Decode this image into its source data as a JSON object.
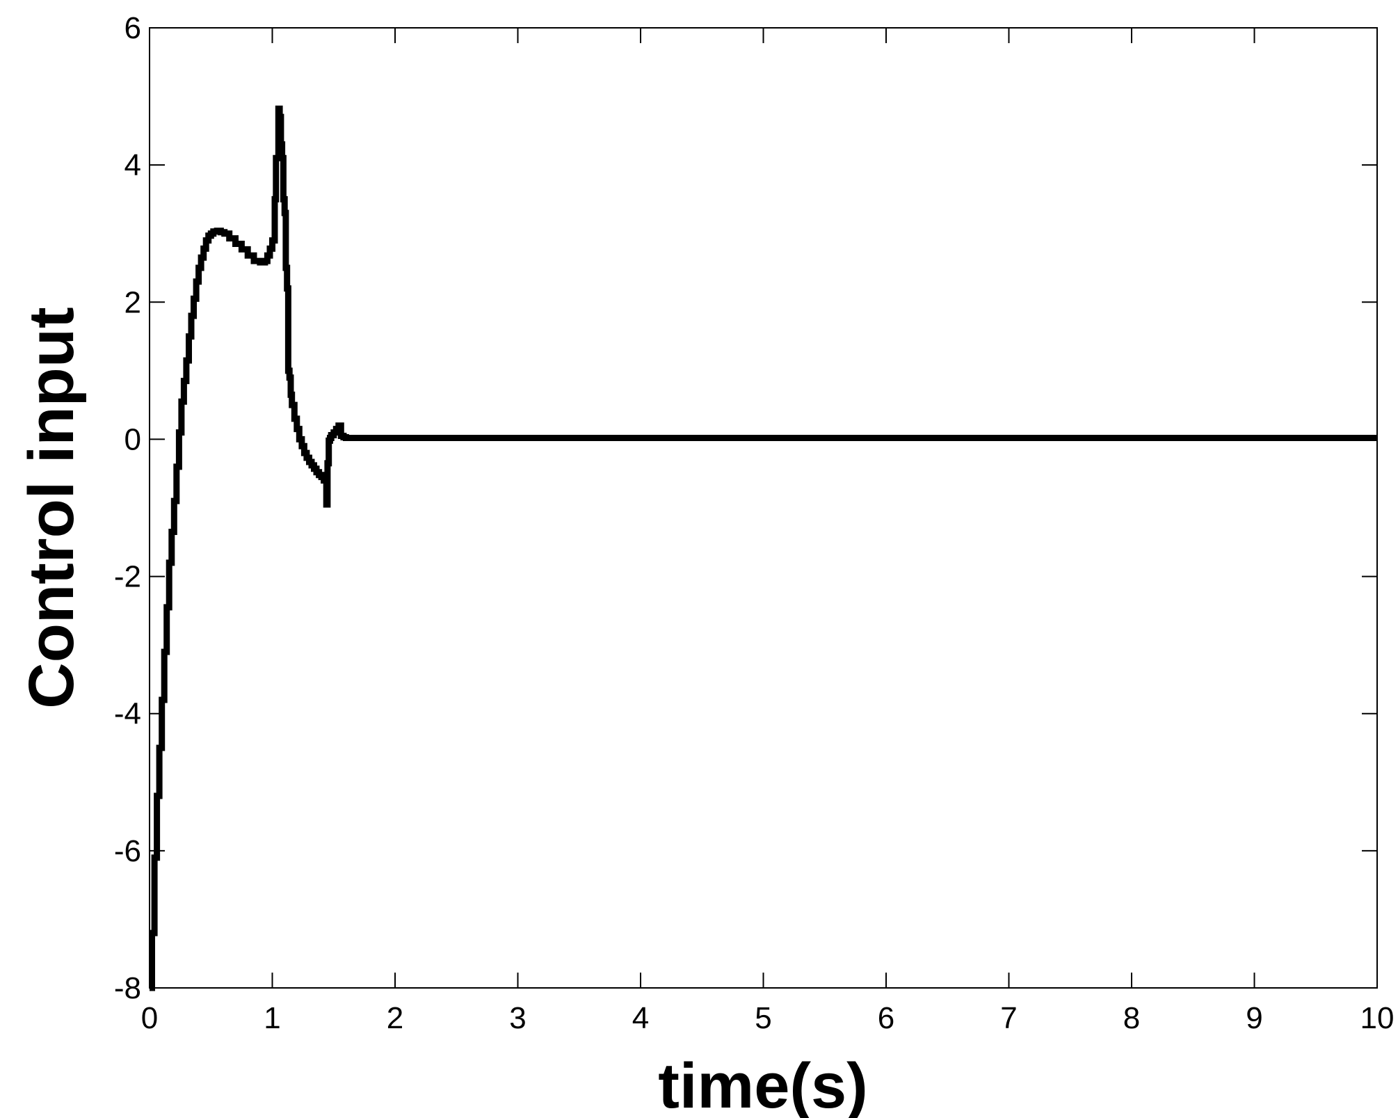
{
  "chart_data": {
    "type": "line",
    "title": "",
    "xlabel": "time(s)",
    "ylabel": "Control input",
    "xlim": [
      0,
      10
    ],
    "ylim": [
      -8,
      6
    ],
    "xticks": [
      0,
      1,
      2,
      3,
      4,
      5,
      6,
      7,
      8,
      9,
      10
    ],
    "yticks": [
      -8,
      -6,
      -4,
      -2,
      0,
      2,
      4,
      6
    ],
    "xtick_labels": [
      "0",
      "1",
      "2",
      "3",
      "4",
      "5",
      "6",
      "7",
      "8",
      "9",
      "10"
    ],
    "ytick_labels": [
      "-8",
      "-6",
      "-4",
      "-2",
      "0",
      "2",
      "4",
      "6"
    ],
    "grid": false,
    "legend": false,
    "line_color": "#000000",
    "series": [
      {
        "x": [
          0.0,
          0.02,
          0.04,
          0.06,
          0.08,
          0.1,
          0.12,
          0.14,
          0.16,
          0.18,
          0.2,
          0.22,
          0.24,
          0.26,
          0.28,
          0.3,
          0.32,
          0.34,
          0.36,
          0.38,
          0.4,
          0.42,
          0.44,
          0.46,
          0.48,
          0.5,
          0.52,
          0.55,
          0.58,
          0.61,
          0.65,
          0.7,
          0.75,
          0.8,
          0.85,
          0.9,
          0.94,
          0.96,
          0.98,
          1.0,
          1.02,
          1.03,
          1.05,
          1.06,
          1.07,
          1.08,
          1.09,
          1.1,
          1.11,
          1.12,
          1.13,
          1.14,
          1.15,
          1.16,
          1.18,
          1.2,
          1.22,
          1.24,
          1.26,
          1.28,
          1.3,
          1.32,
          1.34,
          1.36,
          1.38,
          1.4,
          1.42,
          1.44,
          1.45,
          1.46,
          1.47,
          1.48,
          1.5,
          1.52,
          1.54,
          1.56,
          1.58,
          1.6,
          1.7,
          2.0,
          3.0,
          4.0,
          5.0,
          6.0,
          7.0,
          8.0,
          9.0,
          10.0
        ],
        "y": [
          -8.0,
          -7.2,
          -6.1,
          -5.2,
          -4.5,
          -3.8,
          -3.1,
          -2.45,
          -1.8,
          -1.35,
          -0.9,
          -0.4,
          0.1,
          0.55,
          0.85,
          1.15,
          1.5,
          1.8,
          2.05,
          2.3,
          2.5,
          2.65,
          2.78,
          2.9,
          2.97,
          3.0,
          3.03,
          3.04,
          3.02,
          3.0,
          2.93,
          2.85,
          2.77,
          2.68,
          2.6,
          2.58,
          2.6,
          2.68,
          2.78,
          2.9,
          3.5,
          4.1,
          4.82,
          4.7,
          4.3,
          4.1,
          3.5,
          3.3,
          2.5,
          2.2,
          1.0,
          0.9,
          0.65,
          0.5,
          0.3,
          0.15,
          0.0,
          -0.1,
          -0.2,
          -0.27,
          -0.33,
          -0.38,
          -0.43,
          -0.48,
          -0.52,
          -0.55,
          -0.6,
          -0.95,
          -0.35,
          -0.02,
          0.02,
          0.06,
          0.1,
          0.15,
          0.2,
          0.05,
          0.03,
          0.02,
          0.02,
          0.02,
          0.02,
          0.02,
          0.02,
          0.02,
          0.02,
          0.02,
          0.02,
          0.02
        ]
      }
    ]
  }
}
